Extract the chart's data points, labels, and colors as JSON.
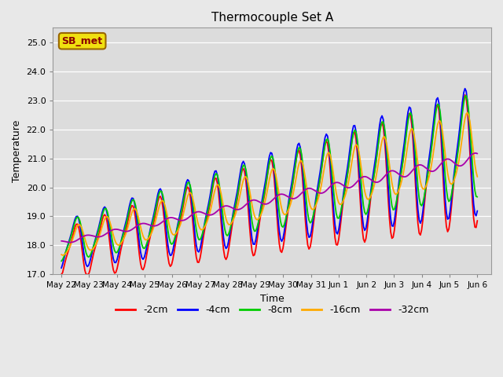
{
  "title": "Thermocouple Set A",
  "xlabel": "Time",
  "ylabel": "Temperature",
  "ylim": [
    17.0,
    25.5
  ],
  "annotation": "SB_met",
  "bg_color": "#e8e8e8",
  "plot_bg_color": "#dcdcdc",
  "legend_entries": [
    "-2cm",
    "-4cm",
    "-8cm",
    "-16cm",
    "-32cm"
  ],
  "line_colors": [
    "#ff0000",
    "#0000ff",
    "#00cc00",
    "#ffaa00",
    "#aa00aa"
  ],
  "line_width": 1.3,
  "x_tick_labels": [
    "May 22",
    "May 23",
    "May 24",
    "May 25",
    "May 26",
    "May 27",
    "May 28",
    "May 29",
    "May 30",
    "May 31",
    "Jun 1",
    "Jun 2",
    "Jun 3",
    "Jun 4",
    "Jun 5",
    "Jun 6"
  ],
  "num_points": 337,
  "end_day": 15.0
}
